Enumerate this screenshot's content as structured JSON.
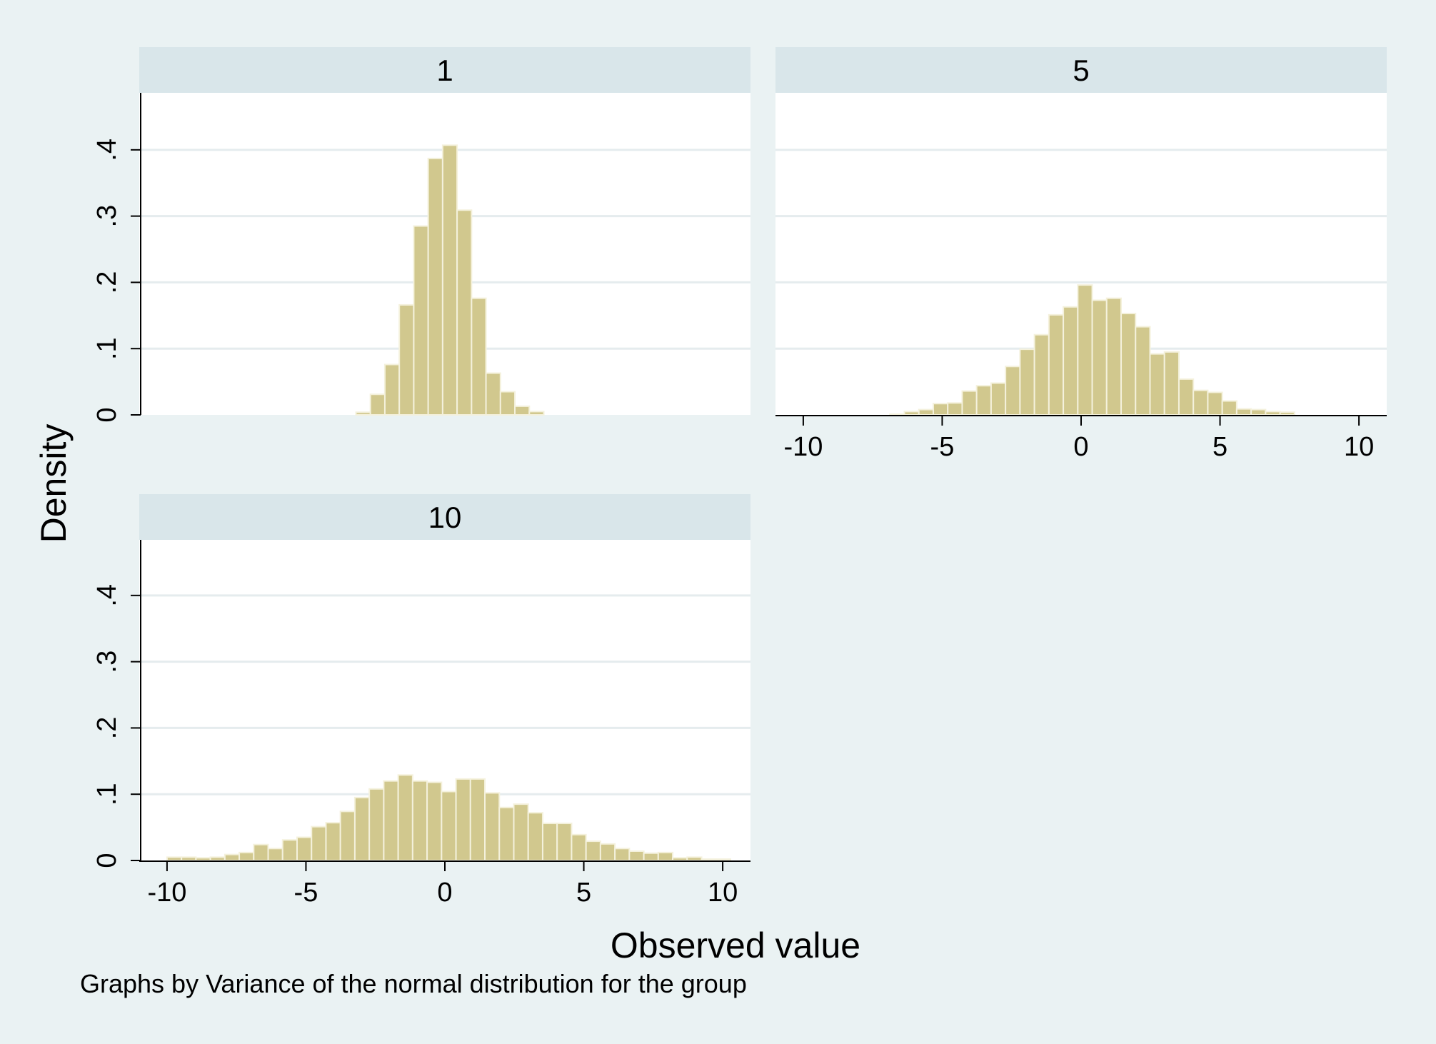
{
  "chart_data": {
    "type": "bar",
    "subtype": "histogram",
    "by_label": "Variance of the normal distribution for the group",
    "note": "Graphs by Variance of the normal distribution for the group",
    "xlabel": "Observed value",
    "ylabel": "Density",
    "xlim": [
      -11,
      11
    ],
    "ylim": [
      0,
      0.43
    ],
    "xticks": [
      -10,
      -5,
      0,
      5,
      10
    ],
    "xtick_labels": [
      "-10",
      "-5",
      "0",
      "5",
      "10"
    ],
    "yticks": [
      0,
      0.1,
      0.2,
      0.3,
      0.4
    ],
    "ytick_labels": [
      "0",
      ".1",
      ".2",
      ".3",
      ".4"
    ],
    "grid": "horizontal",
    "colors": {
      "bar_fill": "#d1c88e",
      "bar_edge": "#f4f1dc",
      "strip": "#d9e6ea",
      "plot_bg": "#ffffff",
      "outer_bg": "#eaf2f3",
      "grid": "#e5ecee"
    },
    "panels": [
      {
        "title": "1",
        "bin_start": -3.2,
        "bin_width": 0.52,
        "values": [
          0.004,
          0.031,
          0.076,
          0.166,
          0.285,
          0.387,
          0.407,
          0.309,
          0.176,
          0.063,
          0.035,
          0.013,
          0.005
        ]
      },
      {
        "title": "5",
        "bin_start": -10,
        "bin_width": 0.52,
        "values": [
          0,
          0,
          0,
          0,
          0,
          0,
          0.001,
          0.005,
          0.008,
          0.017,
          0.018,
          0.036,
          0.044,
          0.048,
          0.073,
          0.099,
          0.121,
          0.151,
          0.163,
          0.196,
          0.173,
          0.176,
          0.153,
          0.133,
          0.092,
          0.095,
          0.054,
          0.037,
          0.034,
          0.021,
          0.009,
          0.008,
          0.005,
          0.004
        ]
      },
      {
        "title": "10",
        "bin_start": -10,
        "bin_width": 0.52,
        "values": [
          0.005,
          0.005,
          0.004,
          0.005,
          0.009,
          0.012,
          0.024,
          0.018,
          0.031,
          0.035,
          0.051,
          0.057,
          0.074,
          0.095,
          0.108,
          0.12,
          0.129,
          0.12,
          0.118,
          0.104,
          0.123,
          0.123,
          0.102,
          0.08,
          0.085,
          0.072,
          0.056,
          0.056,
          0.039,
          0.029,
          0.025,
          0.018,
          0.014,
          0.011,
          0.012,
          0.004,
          0.005,
          0.002,
          0.002
        ]
      }
    ]
  }
}
